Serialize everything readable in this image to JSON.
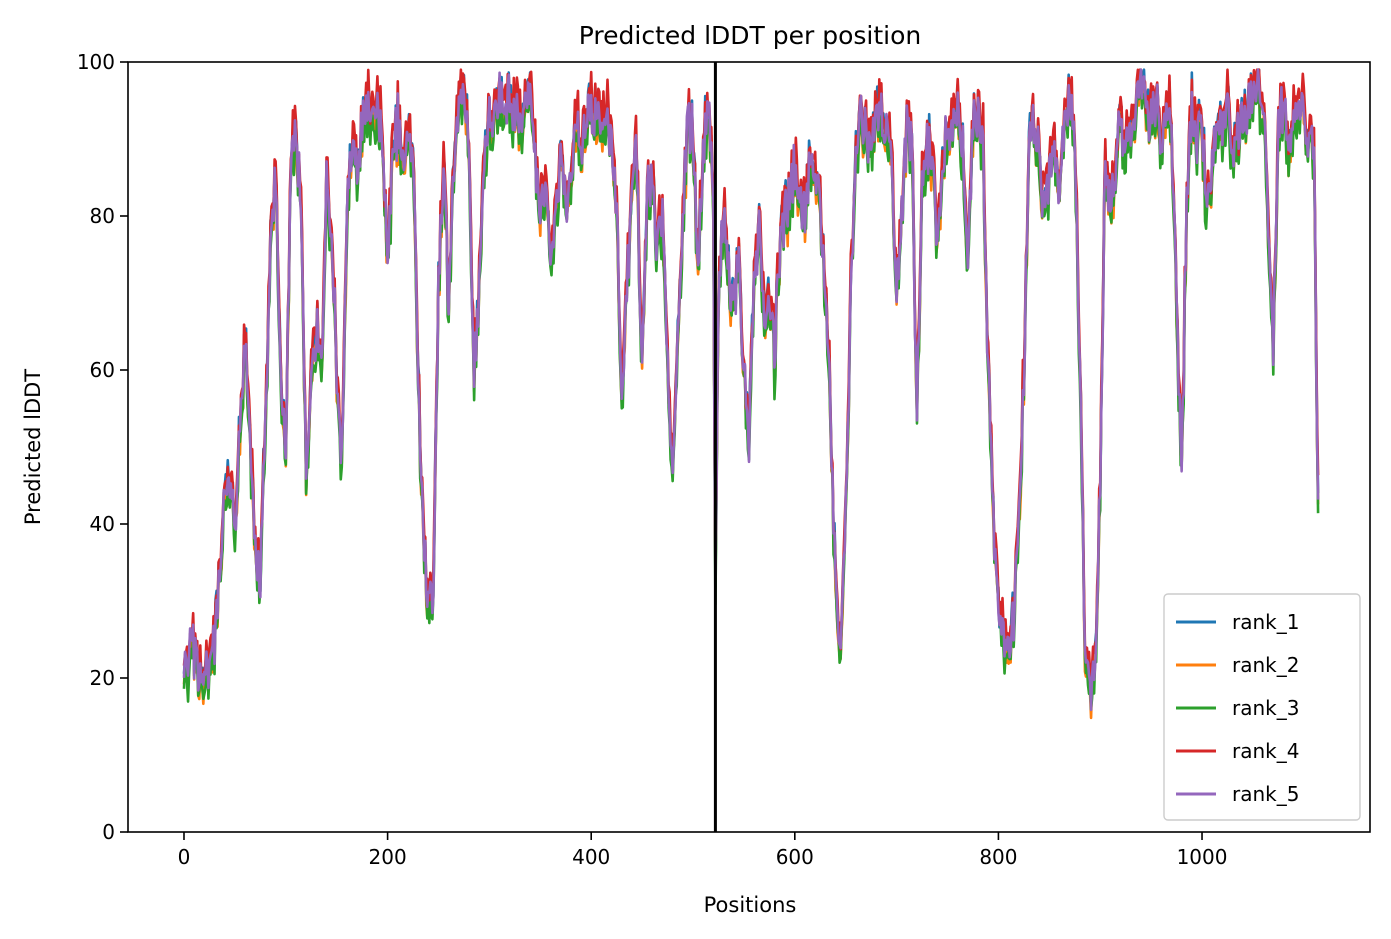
{
  "chart_data": {
    "type": "line",
    "title": "Predicted lDDT per position",
    "xlabel": "Positions",
    "ylabel": "Predicted lDDT",
    "xlim": [
      -55,
      1165
    ],
    "ylim": [
      0,
      100
    ],
    "xticks": [
      0,
      200,
      400,
      600,
      800,
      1000
    ],
    "yticks": [
      0,
      20,
      40,
      60,
      80,
      100
    ],
    "grid": false,
    "legend_position": "lower-right",
    "chain_boundary_x": 522,
    "n_positions": 1115,
    "profile": [
      [
        0,
        20
      ],
      [
        5,
        22
      ],
      [
        10,
        24
      ],
      [
        15,
        21
      ],
      [
        20,
        18
      ],
      [
        25,
        21
      ],
      [
        30,
        24
      ],
      [
        35,
        34
      ],
      [
        40,
        42
      ],
      [
        45,
        46
      ],
      [
        50,
        40
      ],
      [
        55,
        52
      ],
      [
        60,
        63
      ],
      [
        65,
        50
      ],
      [
        70,
        36
      ],
      [
        75,
        32
      ],
      [
        80,
        55
      ],
      [
        85,
        75
      ],
      [
        90,
        86
      ],
      [
        95,
        60
      ],
      [
        100,
        48
      ],
      [
        105,
        88
      ],
      [
        110,
        90
      ],
      [
        115,
        82
      ],
      [
        120,
        45
      ],
      [
        125,
        58
      ],
      [
        130,
        66
      ],
      [
        135,
        60
      ],
      [
        140,
        85
      ],
      [
        145,
        78
      ],
      [
        150,
        60
      ],
      [
        155,
        48
      ],
      [
        160,
        80
      ],
      [
        165,
        88
      ],
      [
        170,
        86
      ],
      [
        175,
        90
      ],
      [
        180,
        94
      ],
      [
        185,
        94
      ],
      [
        190,
        93
      ],
      [
        195,
        90
      ],
      [
        200,
        73
      ],
      [
        205,
        88
      ],
      [
        210,
        92
      ],
      [
        215,
        86
      ],
      [
        220,
        90
      ],
      [
        225,
        88
      ],
      [
        230,
        60
      ],
      [
        235,
        38
      ],
      [
        240,
        31
      ],
      [
        245,
        33
      ],
      [
        250,
        70
      ],
      [
        255,
        88
      ],
      [
        260,
        68
      ],
      [
        265,
        88
      ],
      [
        270,
        94
      ],
      [
        275,
        95
      ],
      [
        280,
        90
      ],
      [
        285,
        60
      ],
      [
        290,
        70
      ],
      [
        295,
        88
      ],
      [
        300,
        92
      ],
      [
        305,
        92
      ],
      [
        310,
        95
      ],
      [
        315,
        96
      ],
      [
        320,
        94
      ],
      [
        325,
        94
      ],
      [
        330,
        92
      ],
      [
        335,
        94
      ],
      [
        340,
        95
      ],
      [
        345,
        88
      ],
      [
        350,
        80
      ],
      [
        355,
        85
      ],
      [
        360,
        75
      ],
      [
        365,
        80
      ],
      [
        370,
        88
      ],
      [
        375,
        80
      ],
      [
        380,
        86
      ],
      [
        385,
        92
      ],
      [
        390,
        90
      ],
      [
        395,
        92
      ],
      [
        400,
        94
      ],
      [
        405,
        93
      ],
      [
        410,
        90
      ],
      [
        415,
        94
      ],
      [
        420,
        88
      ],
      [
        425,
        80
      ],
      [
        430,
        55
      ],
      [
        435,
        70
      ],
      [
        440,
        86
      ],
      [
        445,
        88
      ],
      [
        450,
        60
      ],
      [
        455,
        82
      ],
      [
        460,
        86
      ],
      [
        465,
        75
      ],
      [
        470,
        80
      ],
      [
        475,
        60
      ],
      [
        480,
        48
      ],
      [
        485,
        65
      ],
      [
        490,
        80
      ],
      [
        495,
        92
      ],
      [
        500,
        90
      ],
      [
        505,
        72
      ],
      [
        510,
        90
      ],
      [
        515,
        94
      ],
      [
        520,
        80
      ],
      [
        522,
        30
      ],
      [
        525,
        70
      ],
      [
        530,
        80
      ],
      [
        535,
        72
      ],
      [
        540,
        68
      ],
      [
        545,
        75
      ],
      [
        550,
        60
      ],
      [
        555,
        52
      ],
      [
        560,
        72
      ],
      [
        565,
        78
      ],
      [
        570,
        68
      ],
      [
        575,
        70
      ],
      [
        580,
        62
      ],
      [
        585,
        75
      ],
      [
        590,
        80
      ],
      [
        595,
        82
      ],
      [
        600,
        86
      ],
      [
        605,
        82
      ],
      [
        610,
        80
      ],
      [
        615,
        88
      ],
      [
        620,
        84
      ],
      [
        625,
        80
      ],
      [
        630,
        70
      ],
      [
        635,
        55
      ],
      [
        640,
        32
      ],
      [
        645,
        25
      ],
      [
        650,
        40
      ],
      [
        655,
        70
      ],
      [
        660,
        88
      ],
      [
        665,
        92
      ],
      [
        670,
        90
      ],
      [
        675,
        88
      ],
      [
        680,
        92
      ],
      [
        685,
        94
      ],
      [
        690,
        92
      ],
      [
        695,
        88
      ],
      [
        700,
        70
      ],
      [
        705,
        80
      ],
      [
        710,
        92
      ],
      [
        715,
        90
      ],
      [
        720,
        55
      ],
      [
        725,
        85
      ],
      [
        730,
        90
      ],
      [
        735,
        88
      ],
      [
        740,
        75
      ],
      [
        745,
        85
      ],
      [
        750,
        92
      ],
      [
        755,
        90
      ],
      [
        760,
        96
      ],
      [
        765,
        88
      ],
      [
        770,
        76
      ],
      [
        775,
        92
      ],
      [
        780,
        94
      ],
      [
        785,
        90
      ],
      [
        790,
        60
      ],
      [
        795,
        40
      ],
      [
        800,
        30
      ],
      [
        805,
        26
      ],
      [
        810,
        25
      ],
      [
        815,
        28
      ],
      [
        820,
        40
      ],
      [
        825,
        60
      ],
      [
        830,
        90
      ],
      [
        835,
        92
      ],
      [
        840,
        88
      ],
      [
        845,
        80
      ],
      [
        850,
        86
      ],
      [
        855,
        90
      ],
      [
        860,
        80
      ],
      [
        865,
        92
      ],
      [
        870,
        97
      ],
      [
        875,
        90
      ],
      [
        880,
        60
      ],
      [
        885,
        25
      ],
      [
        890,
        19
      ],
      [
        895,
        22
      ],
      [
        900,
        45
      ],
      [
        905,
        88
      ],
      [
        910,
        80
      ],
      [
        915,
        86
      ],
      [
        920,
        92
      ],
      [
        925,
        90
      ],
      [
        930,
        92
      ],
      [
        935,
        94
      ],
      [
        940,
        96
      ],
      [
        945,
        94
      ],
      [
        950,
        92
      ],
      [
        955,
        95
      ],
      [
        960,
        88
      ],
      [
        965,
        96
      ],
      [
        970,
        90
      ],
      [
        975,
        70
      ],
      [
        980,
        46
      ],
      [
        985,
        82
      ],
      [
        990,
        94
      ],
      [
        995,
        90
      ],
      [
        1000,
        92
      ],
      [
        1005,
        80
      ],
      [
        1010,
        86
      ],
      [
        1015,
        92
      ],
      [
        1020,
        90
      ],
      [
        1025,
        95
      ],
      [
        1030,
        88
      ],
      [
        1035,
        90
      ],
      [
        1040,
        92
      ],
      [
        1045,
        94
      ],
      [
        1050,
        96
      ],
      [
        1055,
        97
      ],
      [
        1060,
        94
      ],
      [
        1065,
        80
      ],
      [
        1070,
        62
      ],
      [
        1075,
        92
      ],
      [
        1080,
        94
      ],
      [
        1085,
        90
      ],
      [
        1090,
        92
      ],
      [
        1095,
        94
      ],
      [
        1100,
        93
      ],
      [
        1105,
        91
      ],
      [
        1110,
        88
      ],
      [
        1114,
        42
      ]
    ],
    "series": [
      {
        "name": "rank_1",
        "color": "#1f77b4",
        "offset": 0.6,
        "seed": 11
      },
      {
        "name": "rank_2",
        "color": "#ff7f0e",
        "offset": -0.8,
        "seed": 23
      },
      {
        "name": "rank_3",
        "color": "#2ca02c",
        "offset": -1.4,
        "seed": 37
      },
      {
        "name": "rank_4",
        "color": "#d62728",
        "offset": 1.6,
        "seed": 53
      },
      {
        "name": "rank_5",
        "color": "#9467bd",
        "offset": 0.0,
        "seed": 71
      }
    ]
  }
}
